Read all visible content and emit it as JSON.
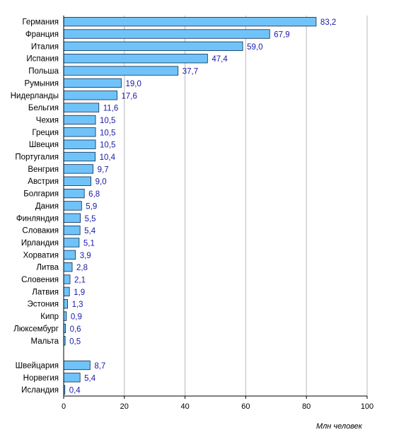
{
  "chart_data": {
    "type": "bar",
    "orientation": "horizontal",
    "groups": [
      {
        "categories": [
          "Германия",
          "Франция",
          "Италия",
          "Испания",
          "Польша",
          "Румыния",
          "Нидерланды",
          "Бельгия",
          "Чехия",
          "Греция",
          "Швеция",
          "Португалия",
          "Венгрия",
          "Австрия",
          "Болгария",
          "Дания",
          "Финляндия",
          "Словакия",
          "Ирландия",
          "Хорватия",
          "Литва",
          "Словения",
          "Латвия",
          "Эстония",
          "Кипр",
          "Люксембург",
          "Мальта"
        ],
        "values": [
          83.2,
          67.9,
          59.0,
          47.4,
          37.7,
          19.0,
          17.6,
          11.6,
          10.5,
          10.5,
          10.5,
          10.4,
          9.7,
          9.0,
          6.8,
          5.9,
          5.5,
          5.4,
          5.1,
          3.9,
          2.8,
          2.1,
          1.9,
          1.3,
          0.9,
          0.6,
          0.5
        ],
        "labels": [
          "83,2",
          "67,9",
          "59,0",
          "47,4",
          "37,7",
          "19,0",
          "17,6",
          "11,6",
          "10,5",
          "10,5",
          "10,5",
          "10,4",
          "9,7",
          "9,0",
          "6,8",
          "5,9",
          "5,5",
          "5,4",
          "5,1",
          "3,9",
          "2,8",
          "2,1",
          "1,9",
          "1,3",
          "0,9",
          "0,6",
          "0,5"
        ]
      },
      {
        "categories": [
          "Швейцария",
          "Норвегия",
          "Исландия"
        ],
        "values": [
          8.7,
          5.4,
          0.4
        ],
        "labels": [
          "8,7",
          "5,4",
          "0,4"
        ]
      }
    ],
    "xlim": [
      0,
      100
    ],
    "xticks": [
      "0",
      "20",
      "40",
      "60",
      "80",
      "100"
    ],
    "xtick_values": [
      0,
      20,
      40,
      60,
      80,
      100
    ],
    "xlabel": "Млн  человек",
    "grid": true,
    "bar_color": "#70c3f8",
    "bar_edge_color": "#0a2a52",
    "value_label_color": "#1a1aa8"
  }
}
